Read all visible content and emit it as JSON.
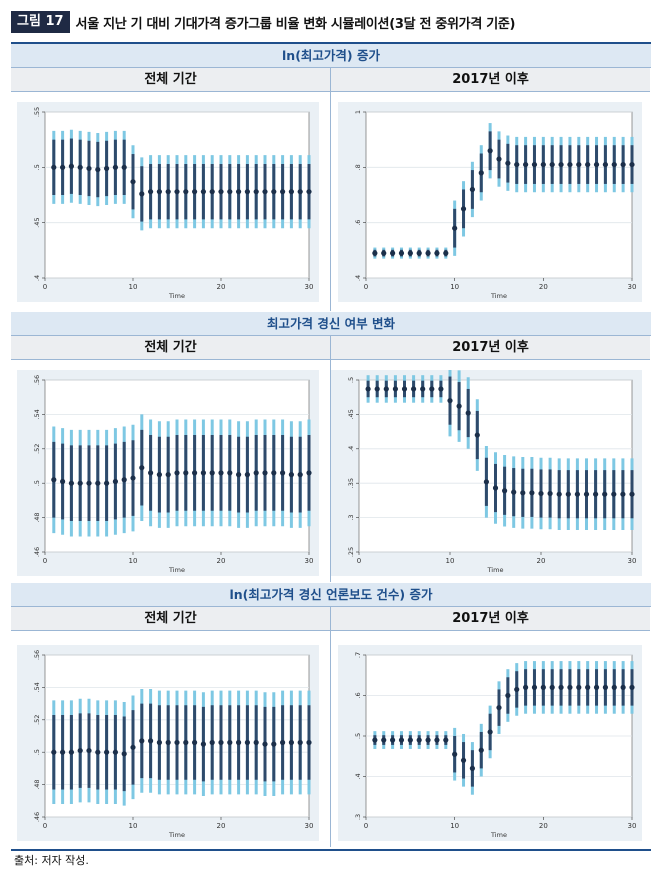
{
  "figure": {
    "label": "그림 17",
    "title": "서울 지난 기 대비 기대가격 증가그룹 비율 변화 시뮬레이션(3달 전 중위가격 기준)"
  },
  "sections": [
    {
      "title": "ln(최고가격) 증가",
      "left": "전체 기간",
      "right": "2017년 이후"
    },
    {
      "title": "최고가격 경신 여부 변화",
      "left": "전체 기간",
      "right": "2017년 이후"
    },
    {
      "title": "ln(최고가격 경신 언론보도 건수) 증가",
      "left": "전체 기간",
      "right": "2017년 이후"
    }
  ],
  "source": "출처: 저자 작성.",
  "colors": {
    "ci_outer": "#7ec8e3",
    "ci_inner": "#2e4a6b",
    "point": "#1b2f4a",
    "panel_bg": "#eaf0f5",
    "accent": "#1f4f8b"
  },
  "chart_data": [
    {
      "type": "scatter",
      "title": "",
      "xlabel": "Time",
      "ylabel": "",
      "xlim": [
        0,
        30
      ],
      "ylim": [
        0.4,
        0.55
      ],
      "xticks": [
        "0",
        "10",
        "20",
        "30"
      ],
      "yticks": [
        ".4",
        ".45",
        ".5",
        ".55"
      ],
      "x": [
        1,
        2,
        3,
        4,
        5,
        6,
        7,
        8,
        9,
        10,
        11,
        12,
        13,
        14,
        15,
        16,
        17,
        18,
        19,
        20,
        21,
        22,
        23,
        24,
        25,
        26,
        27,
        28,
        29,
        30
      ],
      "values": [
        0.5,
        0.5,
        0.501,
        0.5,
        0.499,
        0.498,
        0.499,
        0.5,
        0.5,
        0.487,
        0.476,
        0.478,
        0.478,
        0.478,
        0.478,
        0.478,
        0.478,
        0.478,
        0.478,
        0.478,
        0.478,
        0.478,
        0.478,
        0.478,
        0.478,
        0.478,
        0.478,
        0.478,
        0.478,
        0.478
      ],
      "inner_hw": 0.025,
      "outer_hw": 0.033
    },
    {
      "type": "scatter",
      "title": "",
      "xlabel": "Time",
      "ylabel": "",
      "xlim": [
        0,
        30
      ],
      "ylim": [
        0.4,
        1.0
      ],
      "xticks": [
        "0",
        "10",
        "20",
        "30"
      ],
      "yticks": [
        ".4",
        ".6",
        ".8",
        "1"
      ],
      "x": [
        1,
        2,
        3,
        4,
        5,
        6,
        7,
        8,
        9,
        10,
        11,
        12,
        13,
        14,
        15,
        16,
        17,
        18,
        19,
        20,
        21,
        22,
        23,
        24,
        25,
        26,
        27,
        28,
        29,
        30
      ],
      "values": [
        0.49,
        0.49,
        0.49,
        0.49,
        0.49,
        0.49,
        0.49,
        0.49,
        0.49,
        0.58,
        0.65,
        0.72,
        0.78,
        0.86,
        0.83,
        0.815,
        0.81,
        0.81,
        0.81,
        0.81,
        0.81,
        0.81,
        0.81,
        0.81,
        0.81,
        0.81,
        0.81,
        0.81,
        0.81,
        0.81
      ],
      "inner_hw": 0.07,
      "outer_hw": 0.1,
      "inner_hw_flat": 0.012,
      "outer_hw_flat": 0.02
    },
    {
      "type": "scatter",
      "title": "",
      "xlabel": "Time",
      "ylabel": "",
      "xlim": [
        0,
        30
      ],
      "ylim": [
        0.46,
        0.56
      ],
      "xticks": [
        "0",
        "10",
        "20",
        "30"
      ],
      "yticks": [
        ".46",
        ".48",
        ".5",
        ".52",
        ".54",
        ".56"
      ],
      "x": [
        1,
        2,
        3,
        4,
        5,
        6,
        7,
        8,
        9,
        10,
        11,
        12,
        13,
        14,
        15,
        16,
        17,
        18,
        19,
        20,
        21,
        22,
        23,
        24,
        25,
        26,
        27,
        28,
        29,
        30
      ],
      "values": [
        0.502,
        0.501,
        0.5,
        0.5,
        0.5,
        0.5,
        0.5,
        0.501,
        0.502,
        0.503,
        0.509,
        0.506,
        0.505,
        0.505,
        0.506,
        0.506,
        0.506,
        0.506,
        0.506,
        0.506,
        0.506,
        0.505,
        0.505,
        0.506,
        0.506,
        0.506,
        0.506,
        0.505,
        0.505,
        0.506
      ],
      "inner_hw": 0.022,
      "outer_hw": 0.031
    },
    {
      "type": "scatter",
      "title": "",
      "xlabel": "Time",
      "ylabel": "",
      "xlim": [
        0,
        30
      ],
      "ylim": [
        0.25,
        0.5
      ],
      "xticks": [
        "0",
        "10",
        "20",
        "30"
      ],
      "yticks": [
        ".25",
        ".3",
        ".35",
        ".4",
        ".45",
        ".5"
      ],
      "x": [
        1,
        2,
        3,
        4,
        5,
        6,
        7,
        8,
        9,
        10,
        11,
        12,
        13,
        14,
        15,
        16,
        17,
        18,
        19,
        20,
        21,
        22,
        23,
        24,
        25,
        26,
        27,
        28,
        29,
        30
      ],
      "values": [
        0.487,
        0.487,
        0.487,
        0.487,
        0.487,
        0.487,
        0.487,
        0.487,
        0.487,
        0.47,
        0.462,
        0.452,
        0.42,
        0.352,
        0.343,
        0.339,
        0.337,
        0.336,
        0.336,
        0.335,
        0.335,
        0.334,
        0.334,
        0.334,
        0.334,
        0.334,
        0.334,
        0.334,
        0.334,
        0.334
      ],
      "inner_hw": 0.035,
      "outer_hw": 0.052,
      "inner_hw_flat": 0.012,
      "outer_hw_flat": 0.02
    },
    {
      "type": "scatter",
      "title": "",
      "xlabel": "Time",
      "ylabel": "",
      "xlim": [
        0,
        30
      ],
      "ylim": [
        0.46,
        0.56
      ],
      "xticks": [
        "0",
        "10",
        "20",
        "30"
      ],
      "yticks": [
        ".46",
        ".48",
        ".5",
        ".52",
        ".54",
        ".56"
      ],
      "x": [
        1,
        2,
        3,
        4,
        5,
        6,
        7,
        8,
        9,
        10,
        11,
        12,
        13,
        14,
        15,
        16,
        17,
        18,
        19,
        20,
        21,
        22,
        23,
        24,
        25,
        26,
        27,
        28,
        29,
        30
      ],
      "values": [
        0.5,
        0.5,
        0.5,
        0.501,
        0.501,
        0.5,
        0.5,
        0.5,
        0.499,
        0.503,
        0.507,
        0.507,
        0.506,
        0.506,
        0.506,
        0.506,
        0.506,
        0.505,
        0.506,
        0.506,
        0.506,
        0.506,
        0.506,
        0.506,
        0.505,
        0.505,
        0.506,
        0.506,
        0.506,
        0.506
      ],
      "inner_hw": 0.023,
      "outer_hw": 0.032
    },
    {
      "type": "scatter",
      "title": "",
      "xlabel": "Time",
      "ylabel": "",
      "xlim": [
        0,
        30
      ],
      "ylim": [
        0.3,
        0.7
      ],
      "xticks": [
        "0",
        "10",
        "20",
        "30"
      ],
      "yticks": [
        ".3",
        ".4",
        ".5",
        ".6",
        ".7"
      ],
      "x": [
        1,
        2,
        3,
        4,
        5,
        6,
        7,
        8,
        9,
        10,
        11,
        12,
        13,
        14,
        15,
        16,
        17,
        18,
        19,
        20,
        21,
        22,
        23,
        24,
        25,
        26,
        27,
        28,
        29,
        30
      ],
      "values": [
        0.49,
        0.49,
        0.49,
        0.49,
        0.49,
        0.49,
        0.49,
        0.49,
        0.49,
        0.455,
        0.44,
        0.42,
        0.465,
        0.51,
        0.57,
        0.6,
        0.615,
        0.62,
        0.62,
        0.62,
        0.62,
        0.62,
        0.62,
        0.62,
        0.62,
        0.62,
        0.62,
        0.62,
        0.62,
        0.62
      ],
      "inner_hw": 0.045,
      "outer_hw": 0.065,
      "inner_hw_flat": 0.012,
      "outer_hw_flat": 0.022
    }
  ]
}
